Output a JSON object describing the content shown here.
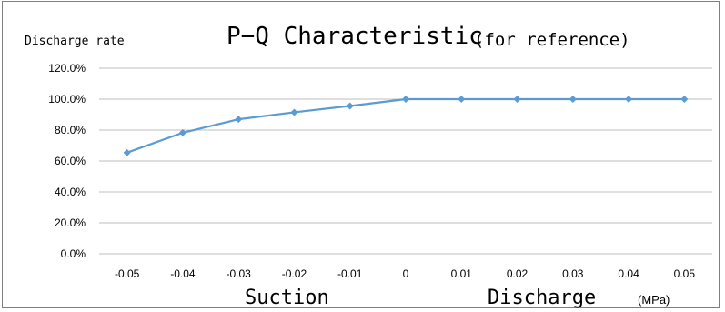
{
  "chart_data": {
    "type": "line",
    "title": "P−Q Characteristic",
    "subtitle": "(for reference)",
    "ylabel": "Discharge rate",
    "x_unit": "(MPa)",
    "region_labels": [
      "Suction",
      "Discharge"
    ],
    "categories": [
      "-0.05",
      "-0.04",
      "-0.03",
      "-0.02",
      "-0.01",
      "0",
      "0.01",
      "0.02",
      "0.03",
      "0.04",
      "0.05"
    ],
    "series": [
      {
        "values": [
          65.4,
          78.3,
          87.0,
          91.5,
          95.6,
          100,
          100,
          100,
          100,
          100,
          100
        ],
        "color": "#5b9bd5"
      }
    ],
    "y_ticks": [
      "0.0%",
      "20.0%",
      "40.0%",
      "60.0%",
      "80.0%",
      "100.0%",
      "120.0%"
    ],
    "ylim": [
      0,
      120
    ],
    "grid": true,
    "legend": "none"
  }
}
